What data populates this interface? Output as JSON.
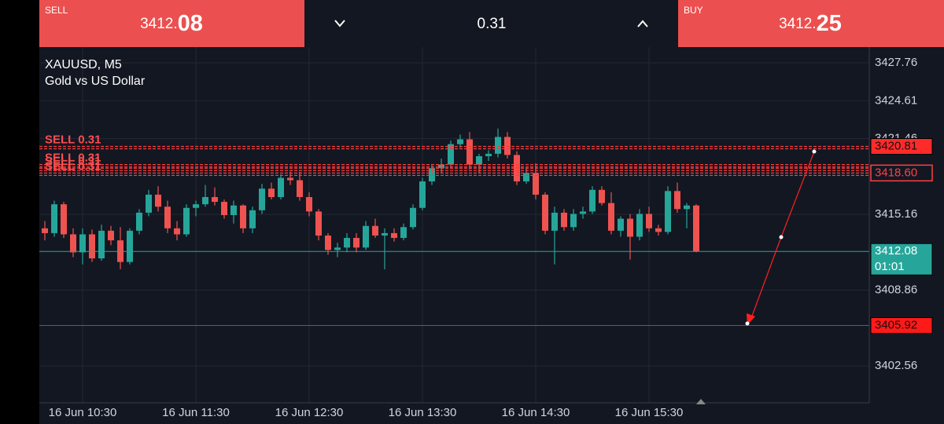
{
  "top_bar": {
    "sell": {
      "label": "SELL",
      "price_main": "3412.",
      "price_pips": "08"
    },
    "volume": "0.31",
    "buy": {
      "label": "BUY",
      "price_main": "3412.",
      "price_pips": "25"
    }
  },
  "chart_data": {
    "type": "candlestick",
    "title": "XAUUSD, M5",
    "subtitle": "Gold vs US Dollar",
    "categories": [
      null,
      null,
      null,
      null,
      "16 Jun 10:30",
      null,
      null,
      null,
      null,
      null,
      null,
      null,
      null,
      null,
      null,
      null,
      "16 Jun 11:30",
      null,
      null,
      null,
      null,
      null,
      null,
      null,
      null,
      null,
      null,
      null,
      "16 Jun 12:30",
      null,
      null,
      null,
      null,
      null,
      null,
      null,
      null,
      null,
      null,
      null,
      "16 Jun 13:30",
      null,
      null,
      null,
      null,
      null,
      null,
      null,
      null,
      null,
      null,
      null,
      "16 Jun 14:30",
      null,
      null,
      null,
      null,
      null,
      null,
      null,
      null,
      null,
      null,
      null,
      "16 Jun 15:30",
      null,
      null,
      null,
      null,
      null
    ],
    "candles": [
      [
        3414.0,
        3414.6,
        3413.0,
        3413.6
      ],
      [
        3413.6,
        3416.3,
        3413.3,
        3416.0
      ],
      [
        3416.0,
        3416.2,
        3413.2,
        3413.5
      ],
      [
        3413.5,
        3414.0,
        3411.6,
        3412.0
      ],
      [
        3412.0,
        3414.0,
        3411.0,
        3413.5
      ],
      [
        3413.5,
        3413.9,
        3411.2,
        3411.5
      ],
      [
        3411.5,
        3414.3,
        3411.3,
        3413.8
      ],
      [
        3413.8,
        3414.2,
        3412.6,
        3413.0
      ],
      [
        3413.0,
        3414.1,
        3410.6,
        3411.2
      ],
      [
        3411.2,
        3414.0,
        3411.0,
        3413.8
      ],
      [
        3413.8,
        3415.6,
        3413.5,
        3415.3
      ],
      [
        3415.3,
        3417.2,
        3415.0,
        3416.8
      ],
      [
        3416.8,
        3417.5,
        3415.4,
        3415.8
      ],
      [
        3415.8,
        3416.3,
        3413.6,
        3414.0
      ],
      [
        3414.0,
        3414.6,
        3413.0,
        3413.5
      ],
      [
        3413.5,
        3416.0,
        3413.3,
        3415.7
      ],
      [
        3415.7,
        3416.3,
        3415.0,
        3416.0
      ],
      [
        3416.0,
        3417.6,
        3415.8,
        3416.6
      ],
      [
        3416.6,
        3417.4,
        3415.9,
        3416.2
      ],
      [
        3416.2,
        3416.4,
        3414.8,
        3415.1
      ],
      [
        3415.1,
        3416.3,
        3414.4,
        3415.9
      ],
      [
        3415.9,
        3416.0,
        3413.6,
        3414.0
      ],
      [
        3414.0,
        3415.8,
        3413.6,
        3415.5
      ],
      [
        3415.5,
        3417.7,
        3415.2,
        3417.3
      ],
      [
        3417.3,
        3417.8,
        3416.4,
        3416.6
      ],
      [
        3416.6,
        3418.5,
        3416.4,
        3418.2
      ],
      [
        3418.2,
        3418.7,
        3417.6,
        3418.0
      ],
      [
        3418.0,
        3418.7,
        3416.3,
        3416.6
      ],
      [
        3416.6,
        3417.0,
        3415.0,
        3415.4
      ],
      [
        3415.4,
        3415.6,
        3413.0,
        3413.4
      ],
      [
        3413.4,
        3413.6,
        3411.8,
        3412.2
      ],
      [
        3412.2,
        3412.8,
        3411.6,
        3412.4
      ],
      [
        3412.4,
        3413.6,
        3412.0,
        3413.2
      ],
      [
        3413.2,
        3413.6,
        3412.0,
        3412.4
      ],
      [
        3412.4,
        3414.6,
        3412.2,
        3414.2
      ],
      [
        3414.2,
        3414.8,
        3413.2,
        3413.4
      ],
      [
        3413.4,
        3414.0,
        3410.6,
        3413.6
      ],
      [
        3413.6,
        3414.0,
        3412.9,
        3413.2
      ],
      [
        3413.2,
        3414.4,
        3413.0,
        3414.1
      ],
      [
        3414.1,
        3416.0,
        3413.9,
        3415.7
      ],
      [
        3415.7,
        3418.2,
        3415.5,
        3417.9
      ],
      [
        3417.9,
        3419.3,
        3417.6,
        3419.0
      ],
      [
        3419.0,
        3419.8,
        3418.6,
        3419.3
      ],
      [
        3419.3,
        3421.3,
        3419.0,
        3421.0
      ],
      [
        3421.0,
        3421.8,
        3420.7,
        3421.4
      ],
      [
        3421.4,
        3422.0,
        3418.9,
        3419.3
      ],
      [
        3419.3,
        3420.2,
        3418.6,
        3420.0
      ],
      [
        3420.0,
        3420.5,
        3419.6,
        3420.2
      ],
      [
        3420.2,
        3422.3,
        3419.9,
        3421.6
      ],
      [
        3421.6,
        3422.0,
        3419.8,
        3420.1
      ],
      [
        3420.1,
        3420.4,
        3417.6,
        3417.9
      ],
      [
        3417.9,
        3419.0,
        3417.7,
        3418.6
      ],
      [
        3418.6,
        3419.4,
        3416.4,
        3416.8
      ],
      [
        3416.8,
        3417.0,
        3413.5,
        3413.8
      ],
      [
        3413.8,
        3415.8,
        3411.0,
        3415.3
      ],
      [
        3415.3,
        3415.6,
        3413.8,
        3414.1
      ],
      [
        3414.1,
        3415.6,
        3413.8,
        3415.2
      ],
      [
        3415.2,
        3415.8,
        3414.8,
        3415.4
      ],
      [
        3415.4,
        3417.5,
        3415.2,
        3417.2
      ],
      [
        3417.2,
        3417.5,
        3415.9,
        3416.1
      ],
      [
        3416.1,
        3417.0,
        3413.5,
        3413.8
      ],
      [
        3413.8,
        3415.0,
        3413.3,
        3414.8
      ],
      [
        3414.8,
        3415.2,
        3411.4,
        3413.3
      ],
      [
        3413.3,
        3415.6,
        3413.0,
        3415.2
      ],
      [
        3415.2,
        3415.8,
        3413.7,
        3414.0
      ],
      [
        3414.0,
        3414.3,
        3413.4,
        3413.7
      ],
      [
        3413.7,
        3417.5,
        3413.5,
        3417.1
      ],
      [
        3417.1,
        3417.8,
        3415.3,
        3415.6
      ],
      [
        3415.6,
        3416.1,
        3414.0,
        3415.9
      ],
      [
        3415.9,
        3416.0,
        3412.0,
        3412.08
      ]
    ],
    "up_color": "#26a69a",
    "down_color": "#ef5350",
    "ylim": [
      3399.49,
      3429.07
    ],
    "yticks": [
      3427.76,
      3424.61,
      3421.46,
      3415.16,
      3408.86,
      3402.56
    ],
    "grid": true,
    "order_lines": [
      {
        "label": "SELL 0.31",
        "price": 3420.81
      },
      {
        "label": "SELL 0.31",
        "price": 3419.3
      },
      {
        "label": "SELL 0.31",
        "price": 3419.0
      },
      {
        "label": "SELL 0.31",
        "price": 3418.6
      }
    ],
    "price_levels": [
      {
        "value": 3420.81,
        "label": "3420.81",
        "color": "#ff2a2a"
      },
      {
        "value": 3418.6,
        "label": "3418.60",
        "color": "#ff4040"
      },
      {
        "value": 3412.08,
        "label": "3412.08",
        "color": "#26a69a"
      },
      {
        "value": 3405.92,
        "label": "3405.92",
        "color": "#ff1a1a"
      }
    ],
    "countdown": "01:01"
  }
}
